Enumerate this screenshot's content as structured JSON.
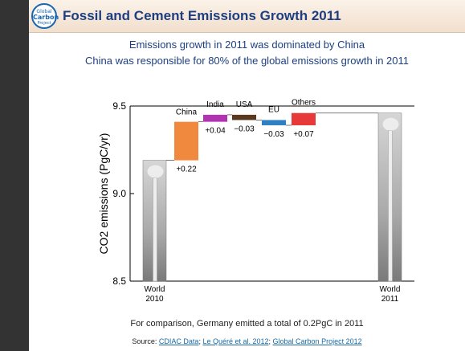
{
  "header": {
    "logo_lines": [
      "Global",
      "Carbon",
      "Project"
    ],
    "title": "Fossil and Cement Emissions Growth 2011"
  },
  "subtitle_1": "Emissions growth in 2011 was dominated by China",
  "subtitle_2": "China was responsible for 80% of the global emissions growth in 2011",
  "footer_note": "For comparison, Germany emitted a total of 0.2PgC in 2011",
  "source": {
    "prefix": "Source: ",
    "links": [
      "CDIAC Data",
      "Le Quéré et al. 2012",
      "Global Carbon Project 2012"
    ],
    "separator": "; "
  },
  "colors": {
    "title": "#1d3f82",
    "China": "#f0883e",
    "India": "#b233b2",
    "USA": "#5a3a1e",
    "EU": "#2f7fc4",
    "Others": "#e8393a",
    "world_bar": "#9a9a9a"
  },
  "chart_data": {
    "type": "bar",
    "subtype": "waterfall",
    "ylabel": "CO2 emissions (PgC/yr)",
    "ylim": [
      8.5,
      9.5
    ],
    "yticks": [
      "8.5",
      "9.0",
      "9.5"
    ],
    "base": {
      "label": "World 2010",
      "label_lines": [
        "World",
        "2010"
      ],
      "value": 9.19
    },
    "steps": [
      {
        "name": "China",
        "delta": 0.22,
        "label": "+0.22"
      },
      {
        "name": "India",
        "delta": 0.04,
        "label": "+0.04"
      },
      {
        "name": "USA",
        "delta": -0.03,
        "label": "−0.03"
      },
      {
        "name": "EU",
        "delta": -0.03,
        "label": "−0.03"
      },
      {
        "name": "Others",
        "delta": 0.07,
        "label": "+0.07"
      }
    ],
    "total": {
      "label": "World 2011",
      "label_lines": [
        "World",
        "2011"
      ],
      "value": 9.46
    },
    "grid": false
  }
}
